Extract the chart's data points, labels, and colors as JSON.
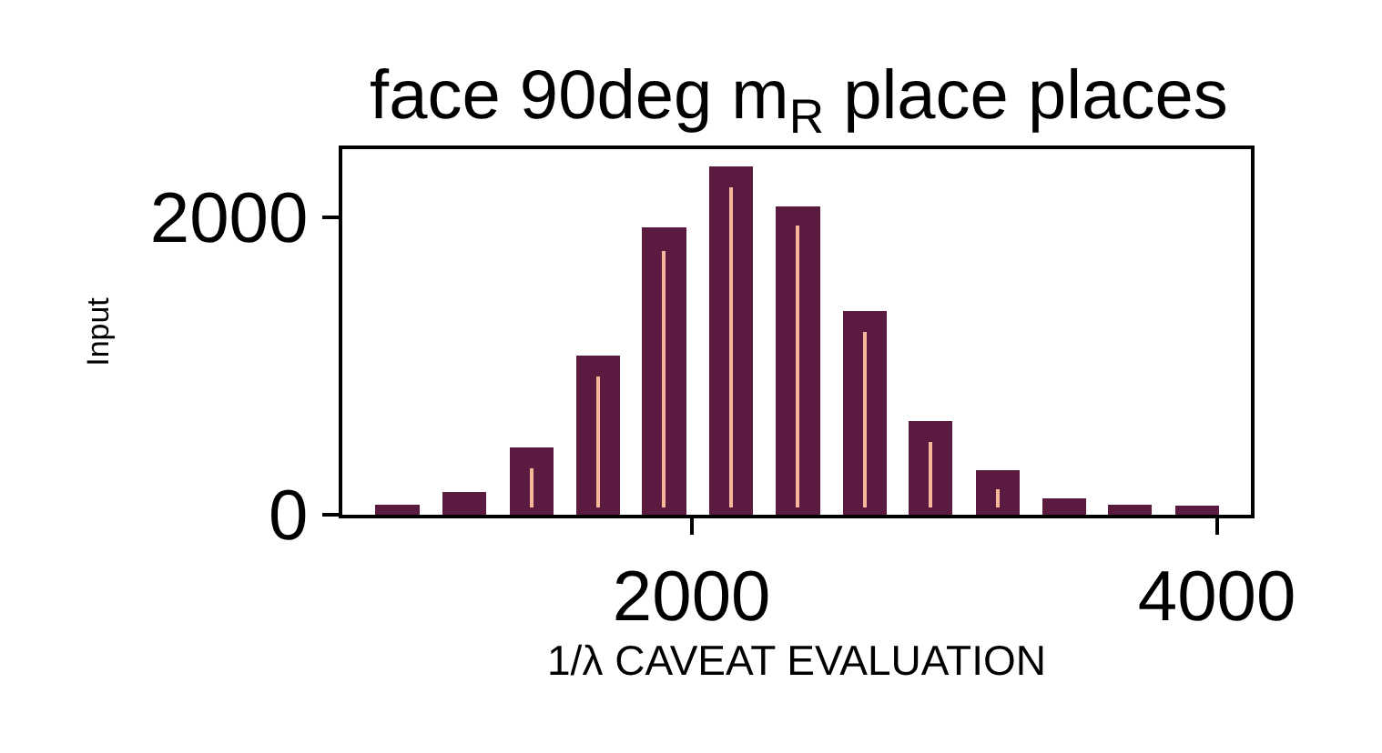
{
  "chart_data": {
    "type": "bar",
    "title": "face 90deg m$_{R}$ place places",
    "xlabel": "1/λ CAVEAT EVALUATION",
    "ylabel": "Input",
    "x": [
      880,
      1135,
      1390,
      1645,
      1895,
      2150,
      2405,
      2660,
      2910,
      3165,
      3420,
      3670,
      3925
    ],
    "series": [
      {
        "color": "#5b1a40",
        "values": [
          70,
          150,
          450,
          1070,
          1930,
          2340,
          2070,
          1370,
          630,
          300,
          110,
          70,
          60
        ]
      },
      {
        "type": "bar",
        "color": "#f6b79a",
        "base": [
          null,
          null,
          50,
          50,
          50,
          50,
          50,
          50,
          50,
          50,
          null,
          null,
          null
        ],
        "values": [
          null,
          null,
          260,
          880,
          1720,
          2150,
          1890,
          1180,
          440,
          120,
          null,
          null,
          null
        ]
      }
    ],
    "xlim": [
      670,
      4130
    ],
    "xticks": [
      2000,
      4000
    ],
    "ylim": [
      0,
      2455
    ],
    "yticks": [
      0,
      2000
    ],
    "grid": false
  }
}
